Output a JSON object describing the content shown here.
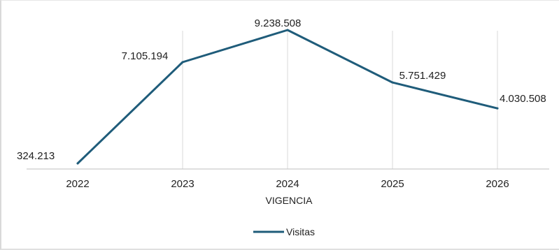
{
  "chart_data": {
    "type": "line",
    "title": "",
    "xlabel": "VIGENCIA",
    "ylabel": "",
    "categories": [
      "2022",
      "2023",
      "2024",
      "2025",
      "2026"
    ],
    "series": [
      {
        "name": "Visitas",
        "values": [
          324213,
          7105194,
          9238508,
          5751429,
          4030508
        ],
        "labels": [
          "324.213",
          "7.105.194",
          "9.238.508",
          "5.751.429",
          "4.030.508"
        ]
      }
    ],
    "ylim": [
      0,
      10000000
    ],
    "grid": "vertical",
    "legend": "bottom",
    "colors": {
      "line": "#1f5c7a",
      "grid": "#d9d9d9",
      "axis": "#bfbfbf"
    }
  }
}
